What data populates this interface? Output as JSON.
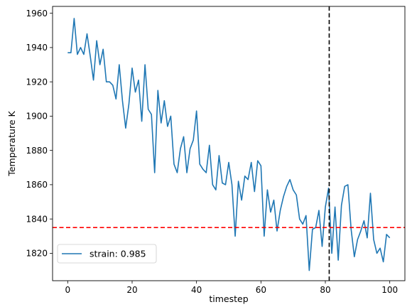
{
  "chart_data": {
    "type": "line",
    "title": "",
    "xlabel": "timestep",
    "ylabel": "Temperature K",
    "xlim": [
      -4.7,
      104.7
    ],
    "ylim": [
      1804,
      1964
    ],
    "xticks": [
      0,
      20,
      40,
      60,
      80,
      100
    ],
    "yticks": [
      1820,
      1840,
      1860,
      1880,
      1900,
      1920,
      1940,
      1960
    ],
    "grid": false,
    "legend_position": "lower-left",
    "series": [
      {
        "name": "strain: 0.985",
        "color": "#1f77b4",
        "x": [
          0,
          1,
          2,
          3,
          4,
          5,
          6,
          7,
          8,
          9,
          10,
          11,
          12,
          13,
          14,
          15,
          16,
          17,
          18,
          19,
          20,
          21,
          22,
          23,
          24,
          25,
          26,
          27,
          28,
          29,
          30,
          31,
          32,
          33,
          34,
          35,
          36,
          37,
          38,
          39,
          40,
          41,
          42,
          43,
          44,
          45,
          46,
          47,
          48,
          49,
          50,
          51,
          52,
          53,
          54,
          55,
          56,
          57,
          58,
          59,
          60,
          61,
          62,
          63,
          64,
          65,
          66,
          67,
          68,
          69,
          70,
          71,
          72,
          73,
          74,
          75,
          76,
          77,
          78,
          79,
          80,
          81,
          82,
          83,
          84,
          85,
          86,
          87,
          88,
          89,
          90,
          91,
          92,
          93,
          94,
          95,
          96,
          97,
          98,
          99,
          100
        ],
        "values": [
          1937,
          1937,
          1957,
          1936,
          1940,
          1936,
          1948,
          1935,
          1921,
          1944,
          1930,
          1939,
          1920,
          1920,
          1918,
          1910,
          1930,
          1909,
          1893,
          1907,
          1928,
          1914,
          1921,
          1897,
          1930,
          1904,
          1901,
          1867,
          1915,
          1896,
          1909,
          1894,
          1900,
          1872,
          1867,
          1881,
          1888,
          1867,
          1881,
          1886,
          1903,
          1872,
          1869,
          1867,
          1883,
          1860,
          1857,
          1877,
          1861,
          1860,
          1873,
          1860,
          1830,
          1862,
          1851,
          1865,
          1863,
          1873,
          1856,
          1874,
          1871,
          1830,
          1857,
          1844,
          1851,
          1833,
          1845,
          1853,
          1859,
          1863,
          1857,
          1854,
          1840,
          1837,
          1842,
          1810,
          1834,
          1835,
          1845,
          1824,
          1847,
          1858,
          1820,
          1847,
          1816,
          1848,
          1859,
          1860,
          1834,
          1818,
          1828,
          1833,
          1839,
          1829,
          1855,
          1828,
          1820,
          1823,
          1815,
          1831,
          1829
        ]
      }
    ],
    "reference_lines": [
      {
        "orientation": "horizontal",
        "value": 1835,
        "color": "#ff0000",
        "style": "dashed"
      },
      {
        "orientation": "vertical",
        "value": 81.2,
        "color": "#000000",
        "style": "dashed"
      }
    ]
  }
}
